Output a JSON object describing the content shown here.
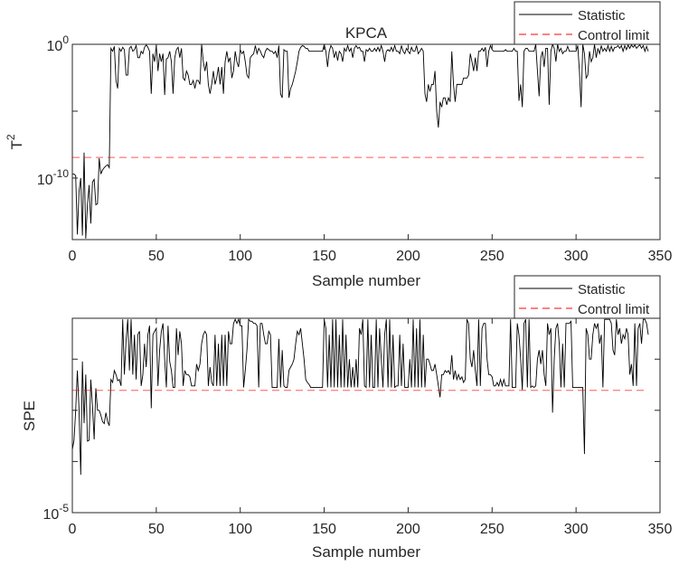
{
  "chart_data": [
    {
      "type": "line",
      "title": "KPCA",
      "xlabel": "Sample number",
      "ylabel": "T",
      "ylabel_superscript": "2",
      "xlim": [
        0,
        350
      ],
      "ylim": [
        2.5e-15,
        1
      ],
      "yscale": "log",
      "x_start": 0,
      "xticks": [
        0,
        50,
        100,
        150,
        200,
        250,
        300,
        350
      ],
      "xtick_labels": [
        "0",
        "50",
        "100",
        "150",
        "200",
        "250",
        "300",
        "350"
      ],
      "yticks": [
        1e-10,
        1e-05,
        1
      ],
      "ytick_labels": [
        {
          "base": "10",
          "exp": "-10"
        },
        {
          "base": "",
          "exp": ""
        },
        {
          "base": "10",
          "exp": "0"
        }
      ],
      "grid": false,
      "legend": {
        "placement": "top-right outside",
        "entries": [
          "Statistic",
          "Control limit"
        ]
      },
      "colors": {
        "statistic": "#000000",
        "control_limit": "#ff0000"
      },
      "control_limit": 3.5e-09,
      "series": [
        {
          "name": "Statistic",
          "values": [
            2e-10,
            2e-10,
            1.5e-10,
            6e-15,
            1e-11,
            1e-10,
            5e-15,
            8e-09,
            3e-15,
            1e-12,
            3e-11,
            4e-14,
            5e-11,
            8e-11,
            1e-12,
            1.2e-12,
            3e-09,
            2e-10,
            4e-10,
            6e-10,
            8e-10,
            1e-09,
            6e-10,
            0.5,
            0.3,
            0.7,
            0.002,
            0.0005,
            0.5,
            0.3,
            0.6,
            0.4,
            0.005,
            0.005,
            0.5,
            0.7,
            0.3,
            0.4,
            0.8,
            0.1,
            0.1,
            0.3,
            0.2,
            0.6,
            0.9,
            0.6,
            0.3,
            0.0002,
            0.2,
            0.05,
            0.9,
            0.01,
            0.2,
            0.05,
            0.2,
            0.00016,
            0.08,
            0.1,
            0.3,
            0.05,
            0.0002,
            0.1,
            0.4,
            0.6,
            0.1,
            0.5,
            0.003,
            0.002,
            0.01,
            0.005,
            0.001,
            0.001,
            0.002,
            0.0005,
            0.002,
            0.002,
            0.001,
            1,
            0.05,
            0.01,
            0.05,
            0.001,
            0.0002,
            0.001,
            0.01,
            0.001,
            0.003,
            0.02,
            0.001,
            0.02,
            0.0002,
            0.05,
            0.3,
            0.05,
            0.1,
            0.003,
            0.01,
            0.3,
            0.05,
            0.02,
            0.4,
            0.2,
            0.3,
            0.05,
            0.005,
            0.003,
            0.1,
            0.15,
            0.2,
            0.8,
            0.2,
            0.5,
            0.3,
            0.15,
            0.1,
            0.3,
            0.5,
            0.4,
            0.3,
            0.3,
            0.2,
            0.3,
            0.1,
            0.8,
            0.0002,
            0.0001,
            0.4,
            0.3,
            0.3,
            0.0001,
            0.0005,
            0.001,
            0.003,
            0.01,
            0.05,
            0.3,
            0.6,
            0.8,
            0.7,
            0.5,
            0.5,
            0.3,
            0.3,
            0.3,
            0.3,
            0.3,
            0.3,
            0.3,
            0.3,
            0.3,
            1,
            0.3,
            0.02,
            0.3,
            0.8,
            0.5,
            0.1,
            0.3,
            0.06,
            0.3,
            0.2,
            0.05,
            0.5,
            0.3,
            0.8,
            0.3,
            0.5,
            0.1,
            0.5,
            0.8,
            0.5,
            0.6,
            0.3,
            0.3,
            0.05,
            0.4,
            0.3,
            0.5,
            0.3,
            0.3,
            0.5,
            0.3,
            0.6,
            0.3,
            0.8,
            0.3,
            0.05,
            0.3,
            0.4,
            0.3,
            0.6,
            0.3,
            0.8,
            0.3,
            0.3,
            0.2,
            0.8,
            0.3,
            0.2,
            0.5,
            0.3,
            0.2,
            0.6,
            0.3,
            0.3,
            0.8,
            0.2,
            0.3,
            0.5,
            0.3,
            0.0002,
            5e-05,
            0.001,
            0.0003,
            0.001,
            0.001,
            0.01,
            1e-05,
            6e-07,
            5e-05,
            2e-05,
            0.0001,
            0.0001,
            3e-05,
            0.0001,
            5e-05,
            0.3,
            0.001,
            5e-05,
            0.001,
            0.001,
            0.001,
            0.001,
            0.003,
            0.003,
            0.003,
            0.005,
            0.2,
            0.05,
            0.01,
            0.1,
            0.01,
            0.3,
            0.3,
            0.5,
            0.3,
            0.6,
            0.02,
            0.3,
            0.8,
            0.4,
            0.3,
            0.3,
            0.3,
            0.3,
            0.3,
            0.3,
            0.3,
            0.4,
            0.3,
            0.3,
            0.3,
            0.3,
            0.5,
            0.3,
            0.3,
            6e-05,
            0.001,
            2e-05,
            0.3,
            0.5,
            0.5,
            0.3,
            0.3,
            0.3,
            0.3,
            1,
            0.01,
            0.00013,
            0.1,
            0.3,
            0.02,
            0.5,
            0.5,
            3e-05,
            0.3,
            1,
            0.5,
            0.05,
            1,
            0.3,
            0.5,
            0.2,
            0.3,
            0.3,
            0.7,
            0.3,
            0.3,
            0.3,
            0.3,
            0.3,
            0.8,
            0.01,
            2e-05,
            1,
            0.2,
            0.003,
            0.005,
            0.3,
            0.05,
            0.1,
            1,
            0.1,
            0.5,
            0.2,
            0.8,
            0.3,
            0.5,
            0.3,
            0.8,
            0.3,
            0.7,
            0.3,
            0.6,
            0.6,
            0.8,
            0.5,
            0.8,
            0.3,
            0.8,
            0.4,
            0.9,
            0.5,
            0.9,
            0.6,
            0.9,
            0.5,
            0.7,
            0.9,
            0.5,
            0.8,
            0.3,
            0.7,
            0.3
          ]
        },
        {
          "name": "Control limit",
          "values": []
        }
      ]
    },
    {
      "type": "line",
      "title": "",
      "xlabel": "Sample number",
      "ylabel": "SPE",
      "xlim": [
        0,
        350
      ],
      "ylim": [
        1e-05,
        0.063
      ],
      "yscale": "log",
      "x_start": 0,
      "xticks": [
        0,
        50,
        100,
        150,
        200,
        250,
        300,
        350
      ],
      "xtick_labels": [
        "0",
        "50",
        "100",
        "150",
        "200",
        "250",
        "300",
        "350"
      ],
      "yticks": [
        1e-05,
        0.0001,
        0.001,
        0.01
      ],
      "ytick_labels": [
        {
          "base": "10",
          "exp": "-5"
        },
        {
          "base": "",
          "exp": ""
        },
        {
          "base": "",
          "exp": ""
        },
        {
          "base": "",
          "exp": ""
        }
      ],
      "grid": false,
      "legend": {
        "placement": "top-right outside",
        "entries": [
          "Statistic",
          "Control limit"
        ]
      },
      "colors": {
        "statistic": "#000000",
        "control_limit": "#ff0000"
      },
      "control_limit": 0.00245,
      "series": [
        {
          "name": "Statistic",
          "values": [
            0.00017,
            0.00026,
            0.001,
            0.006,
            0.001,
            5.5e-05,
            0.009,
            0.00056,
            0.005,
            0.00025,
            0.00026,
            0.004,
            0.0012,
            0.00027,
            0.0027,
            0.001,
            0.001,
            0.0008,
            0.0006,
            0.00055,
            0.0009,
            0.0006,
            0.0005,
            0.004,
            0.0035,
            0.006,
            0.005,
            0.0038,
            0.004,
            0.003,
            0.06,
            0.005,
            0.023,
            0.06,
            0.006,
            0.06,
            0.005,
            0.03,
            0.004,
            0.03,
            0.035,
            0.003,
            0.005,
            0.02,
            0.007,
            0.03,
            0.045,
            0.0011,
            0.03,
            0.035,
            0.04,
            0.003,
            0.015,
            0.035,
            0.05,
            0.01,
            0.0028,
            0.045,
            0.009,
            0.006,
            0.0028,
            0.0028,
            0.04,
            0.012,
            0.035,
            0.02,
            0.003,
            0.006,
            0.005,
            0.005,
            0.0045,
            0.003,
            0.003,
            0.003,
            0.008,
            0.006,
            0.008,
            0.02,
            0.03,
            0.035,
            0.03,
            0.003,
            0.007,
            0.0035,
            0.003,
            0.03,
            0.003,
            0.02,
            0.003,
            0.03,
            0.003,
            0.03,
            0.003,
            0.035,
            0.02,
            0.02,
            0.05,
            0.06,
            0.05,
            0.06,
            0.045,
            0.045,
            0.0028,
            0.006,
            0.015,
            0.06,
            0.055,
            0.055,
            0.05,
            0.05,
            0.045,
            0.0028,
            0.05,
            0.05,
            0.03,
            0.02,
            0.02,
            0.035,
            0.03,
            0.0028,
            0.0028,
            0.0028,
            0.0028,
            0.025,
            0.0028,
            0.015,
            0.003,
            0.0028,
            0.0028,
            0.006,
            0.007,
            0.008,
            0.01,
            0.02,
            0.035,
            0.03,
            0.04,
            0.02,
            0.01,
            0.004,
            0.0035,
            0.0032,
            0.0028,
            0.0028,
            0.0028,
            0.0028,
            0.0028,
            0.0028,
            0.0028,
            0.0028,
            0.06,
            0.04,
            0.0028,
            0.03,
            0.0028,
            0.06,
            0.0028,
            0.06,
            0.0028,
            0.03,
            0.0028,
            0.06,
            0.0028,
            0.03,
            0.0028,
            0.01,
            0.0028,
            0.007,
            0.0028,
            0.01,
            0.0028,
            0.04,
            0.03,
            0.06,
            0.003,
            0.0028,
            0.06,
            0.0028,
            0.03,
            0.0028,
            0.0028,
            0.06,
            0.0028,
            0.04,
            0.01,
            0.0028,
            0.03,
            0.06,
            0.0028,
            0.06,
            0.0028,
            0.03,
            0.0028,
            0.003,
            0.003,
            0.03,
            0.003,
            0.02,
            0.0028,
            0.0028,
            0.0028,
            0.01,
            0.0028,
            0.06,
            0.0028,
            0.04,
            0.0028,
            0.06,
            0.0028,
            0.03,
            0.0028,
            0.01,
            0.01,
            0.008,
            0.006,
            0.006,
            0.008,
            0.005,
            0.003,
            0.0018,
            0.005,
            0.005,
            0.006,
            0.0055,
            0.006,
            0.005,
            0.012,
            0.004,
            0.006,
            0.004,
            0.005,
            0.004,
            0.0045,
            0.0035,
            0.004,
            0.06,
            0.05,
            0.01,
            0.007,
            0.015,
            0.006,
            0.003,
            0.06,
            0.003,
            0.04,
            0.05,
            0.05,
            0.01,
            0.005,
            0.005,
            0.0045,
            0.003,
            0.003,
            0.0035,
            0.003,
            0.004,
            0.003,
            0.004,
            0.003,
            0.003,
            0.003,
            0.06,
            0.0028,
            0.0028,
            0.0028,
            0.05,
            0.03,
            0.01,
            0.0025,
            0.05,
            0.06,
            0.0028,
            0.06,
            0.0028,
            0.003,
            0.0028,
            0.003,
            0.01,
            0.015,
            0.008,
            0.015,
            0.005,
            0.003,
            0.05,
            0.03,
            0.04,
            0.0009,
            0.01,
            0.04,
            0.05,
            0.02,
            0.0028,
            0.02,
            0.0028,
            0.05,
            0.05,
            0.05,
            0.055,
            0.0028,
            0.0028,
            0.0028,
            0.0028,
            0.0028,
            0.0028,
            0.0028,
            0.00014,
            0.04,
            0.03,
            0.01,
            0.01,
            0.03,
            0.05,
            0.04,
            0.05,
            0.02,
            0.03,
            0.0028,
            0.06,
            0.06,
            0.06,
            0.06,
            0.05,
            0.015,
            0.012,
            0.06,
            0.03,
            0.04,
            0.02,
            0.03,
            0.025,
            0.04,
            0.03,
            0.005,
            0.008,
            0.003,
            0.05,
            0.003,
            0.04,
            0.05,
            0.02,
            0.06,
            0.06,
            0.05,
            0.03
          ]
        },
        {
          "name": "Control limit",
          "values": []
        }
      ]
    }
  ]
}
